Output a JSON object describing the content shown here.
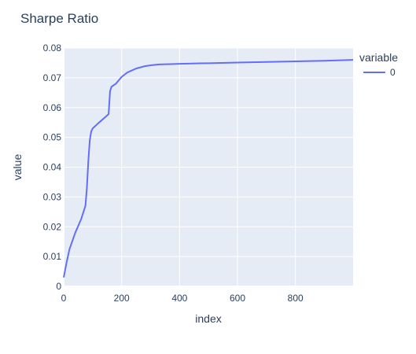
{
  "chart_data": {
    "type": "line",
    "title": "Sharpe Ratio",
    "xlabel": "index",
    "ylabel": "value",
    "xlim": [
      0,
      999
    ],
    "ylim": [
      0,
      0.08
    ],
    "x_ticks": [
      0,
      200,
      400,
      600,
      800
    ],
    "y_ticks": [
      0,
      0.01,
      0.02,
      0.03,
      0.04,
      0.05,
      0.06,
      0.07,
      0.08
    ],
    "grid": true,
    "legend": {
      "title": "variable",
      "placement": "top-right"
    },
    "series": [
      {
        "name": "0",
        "color": "#636efa",
        "x": [
          0,
          10,
          20,
          40,
          60,
          75,
          80,
          85,
          90,
          95,
          100,
          120,
          140,
          155,
          160,
          165,
          180,
          200,
          220,
          250,
          280,
          300,
          330,
          370,
          400,
          500,
          600,
          700,
          800,
          900,
          999
        ],
        "y": [
          0.003,
          0.008,
          0.0125,
          0.018,
          0.0225,
          0.027,
          0.033,
          0.042,
          0.049,
          0.052,
          0.053,
          0.0548,
          0.0565,
          0.0578,
          0.0655,
          0.067,
          0.068,
          0.0703,
          0.0718,
          0.0731,
          0.0739,
          0.0742,
          0.0745,
          0.0746,
          0.0747,
          0.0749,
          0.0751,
          0.0753,
          0.0755,
          0.0757,
          0.076
        ]
      }
    ]
  },
  "colors": {
    "plot_bg": "#e5ecf6",
    "grid": "#ffffff",
    "text": "#2a3f5f",
    "line": "#636efa"
  }
}
